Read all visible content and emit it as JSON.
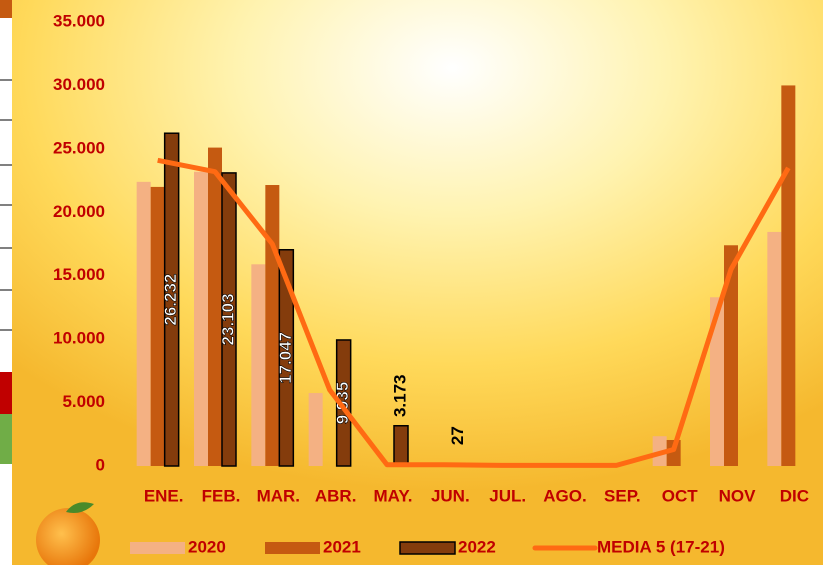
{
  "chart_data": {
    "type": "bar",
    "categories": [
      "ENE.",
      "FEB.",
      "MAR.",
      "ABR.",
      "MAY.",
      "JUN.",
      "JUL.",
      "AGO.",
      "SEP.",
      "OCT",
      "NOV",
      "DIC"
    ],
    "series": [
      {
        "name": "2020",
        "color": "#f4b183",
        "values": [
          22400,
          23200,
          15900,
          5750,
          null,
          null,
          null,
          null,
          null,
          2350,
          13300,
          18450
        ]
      },
      {
        "name": "2021",
        "color": "#c55a11",
        "values": [
          22000,
          25100,
          22150,
          null,
          null,
          null,
          null,
          null,
          null,
          2050,
          17400,
          30000
        ]
      },
      {
        "name": "2022",
        "color": "#843c0c",
        "values": [
          26232,
          23103,
          17047,
          9935,
          3173,
          27,
          null,
          null,
          null,
          null,
          null,
          null
        ],
        "value_labels": [
          "26.232",
          "23.103",
          "17.047",
          "9.935",
          "3.173",
          "27",
          null,
          null,
          null,
          null,
          null,
          null
        ]
      },
      {
        "name": "MEDIA 5 (17-21)",
        "color": "#ff6a13",
        "type": "line",
        "values": [
          24100,
          23200,
          17500,
          6000,
          100,
          100,
          50,
          50,
          50,
          1300,
          15500,
          23500
        ]
      }
    ],
    "ylim": [
      0,
      35000
    ],
    "yticks": [
      0,
      {
        "value": 5000,
        "label": "5.000"
      },
      {
        "value": 10000,
        "label": "10.000"
      },
      {
        "value": 15000,
        "label": "15.000"
      },
      {
        "value": 20000,
        "label": "20.000"
      },
      {
        "value": 25000,
        "label": "25.000"
      },
      {
        "value": 30000,
        "label": "30.000"
      },
      {
        "value": 35000,
        "label": "35.000"
      }
    ],
    "grid": false
  }
}
